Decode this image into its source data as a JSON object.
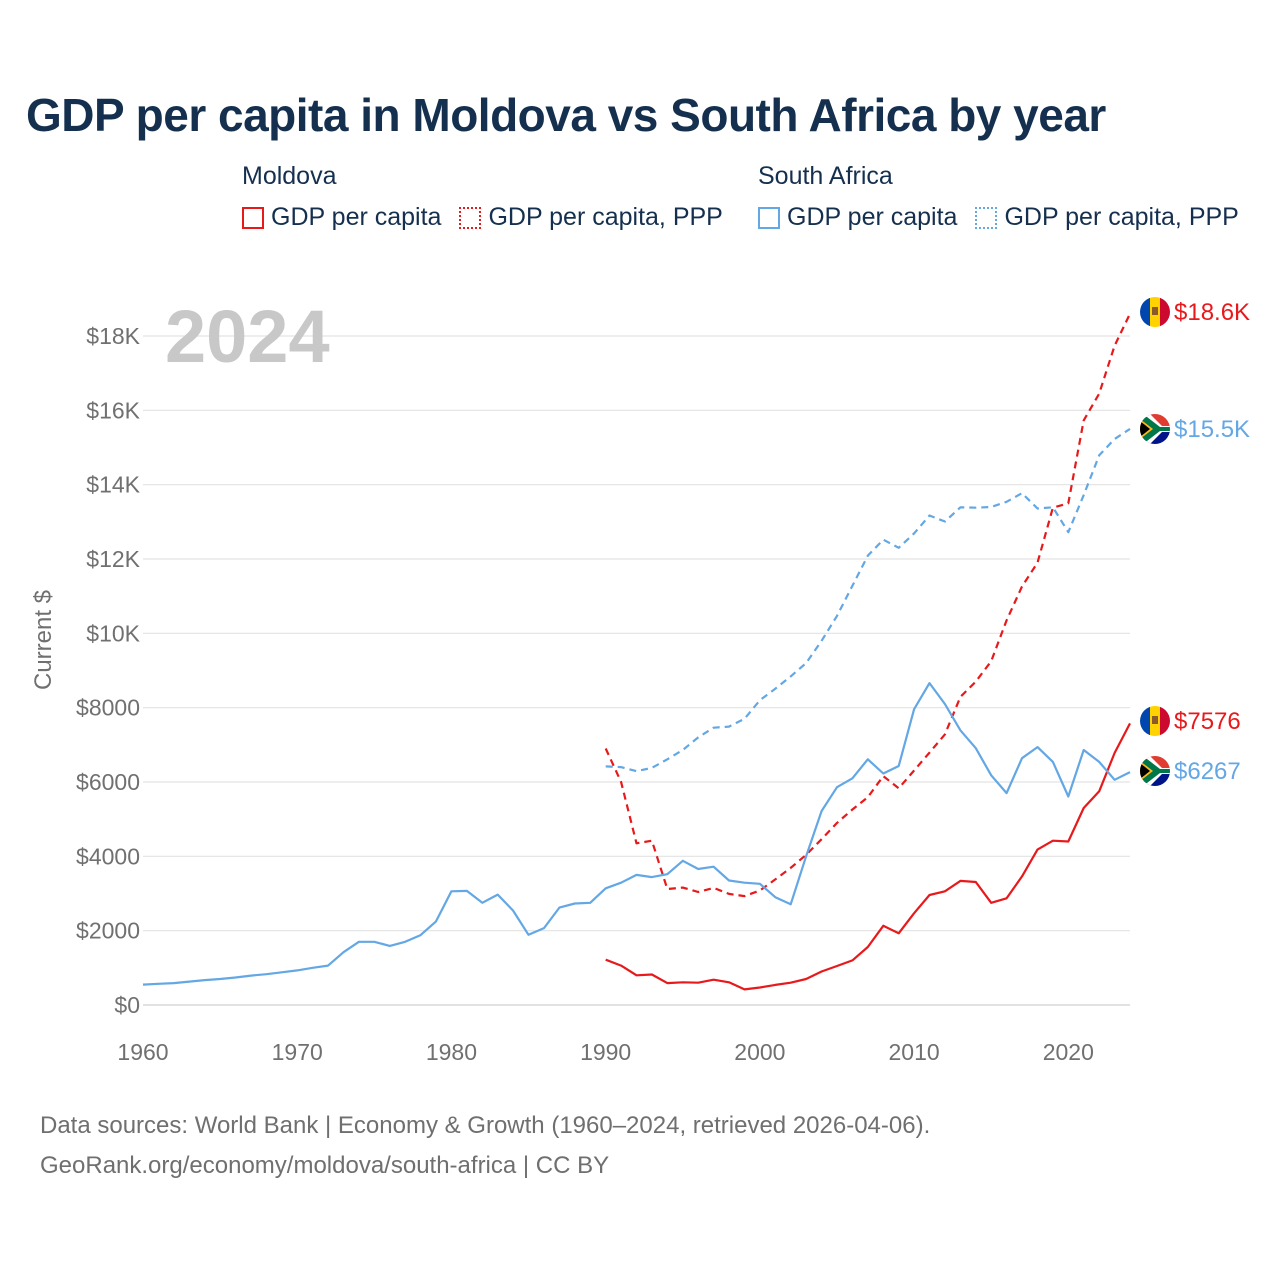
{
  "title": "GDP per capita in Moldova vs South Africa by year",
  "legend": {
    "groups": [
      {
        "country": "Moldova",
        "items": [
          "GDP per capita",
          "GDP per capita, PPP"
        ]
      },
      {
        "country": "South Africa",
        "items": [
          "GDP per capita",
          "GDP per capita, PPP"
        ]
      }
    ]
  },
  "year_watermark": "2024",
  "footer": {
    "line1": "Data sources: World Bank | Economy & Growth (1960–2024, retrieved 2026-04-06).",
    "line2": "GeoRank.org/economy/moldova/south-africa | CC BY"
  },
  "colors": {
    "moldova": "#e8191b",
    "south_africa": "#63a7e4",
    "grid": "#e3e3e3",
    "axis": "#707070"
  },
  "chart_data": {
    "type": "line",
    "xlabel": "",
    "ylabel": "Current $",
    "xlim": [
      1960,
      2024
    ],
    "ylim": [
      0,
      18000
    ],
    "x_ticks": [
      1960,
      1970,
      1980,
      1990,
      2000,
      2010,
      2020
    ],
    "y_ticks": [
      0,
      2000,
      4000,
      6000,
      8000,
      10000,
      12000,
      14000,
      16000,
      18000
    ],
    "y_tick_labels": [
      "$0",
      "$2000",
      "$4000",
      "$6000",
      "$8000",
      "$10K",
      "$12K",
      "$14K",
      "$16K",
      "$18K"
    ],
    "series": [
      {
        "name": "Moldova GDP per capita",
        "country": "Moldova",
        "style": "solid",
        "end_label": "$7576",
        "x": [
          1990,
          1991,
          1992,
          1993,
          1994,
          1995,
          1996,
          1997,
          1998,
          1999,
          2000,
          2001,
          2002,
          2003,
          2004,
          2005,
          2006,
          2007,
          2008,
          2009,
          2010,
          2011,
          2012,
          2013,
          2014,
          2015,
          2016,
          2017,
          2018,
          2019,
          2020,
          2021,
          2022,
          2023,
          2024
        ],
        "y": [
          1220,
          1060,
          800,
          820,
          590,
          610,
          600,
          680,
          610,
          420,
          470,
          540,
          600,
          700,
          900,
          1050,
          1200,
          1560,
          2130,
          1930,
          2470,
          2960,
          3060,
          3340,
          3310,
          2750,
          2870,
          3460,
          4180,
          4420,
          4400,
          5300,
          5750,
          6780,
          7576
        ]
      },
      {
        "name": "Moldova GDP per capita, PPP",
        "country": "Moldova",
        "style": "dashed",
        "end_label": "$18.6K",
        "x": [
          1990,
          1991,
          1992,
          1993,
          1994,
          1995,
          1996,
          1997,
          1998,
          1999,
          2000,
          2001,
          2002,
          2003,
          2004,
          2005,
          2006,
          2007,
          2008,
          2009,
          2010,
          2011,
          2012,
          2013,
          2014,
          2015,
          2016,
          2017,
          2018,
          2019,
          2020,
          2021,
          2022,
          2023,
          2024
        ],
        "y": [
          6900,
          6000,
          4350,
          4420,
          3120,
          3160,
          3040,
          3150,
          2990,
          2930,
          3080,
          3380,
          3690,
          4040,
          4460,
          4900,
          5260,
          5590,
          6160,
          5830,
          6310,
          6790,
          7280,
          8290,
          8700,
          9250,
          10350,
          11260,
          11900,
          13380,
          13500,
          15730,
          16450,
          17740,
          18600
        ]
      },
      {
        "name": "South Africa GDP per capita",
        "country": "South Africa",
        "style": "solid",
        "end_label": "$6267",
        "x": [
          1960,
          1961,
          1962,
          1963,
          1964,
          1965,
          1966,
          1967,
          1968,
          1969,
          1970,
          1971,
          1972,
          1973,
          1974,
          1975,
          1976,
          1977,
          1978,
          1979,
          1980,
          1981,
          1982,
          1983,
          1984,
          1985,
          1986,
          1987,
          1988,
          1989,
          1990,
          1991,
          1992,
          1993,
          1994,
          1995,
          1996,
          1997,
          1998,
          1999,
          2000,
          2001,
          2002,
          2003,
          2004,
          2005,
          2006,
          2007,
          2008,
          2009,
          2010,
          2011,
          2012,
          2013,
          2014,
          2015,
          2016,
          2017,
          2018,
          2019,
          2020,
          2021,
          2022,
          2023,
          2024
        ],
        "y": [
          550,
          570,
          590,
          630,
          670,
          700,
          740,
          790,
          830,
          880,
          930,
          1000,
          1060,
          1420,
          1700,
          1700,
          1590,
          1700,
          1880,
          2250,
          3060,
          3070,
          2750,
          2970,
          2540,
          1890,
          2070,
          2620,
          2730,
          2750,
          3140,
          3290,
          3500,
          3440,
          3520,
          3880,
          3660,
          3720,
          3350,
          3290,
          3260,
          2900,
          2710,
          4000,
          5220,
          5860,
          6100,
          6610,
          6230,
          6430,
          7960,
          8660,
          8100,
          7390,
          6910,
          6180,
          5700,
          6640,
          6940,
          6540,
          5610,
          6860,
          6540,
          6060,
          6267
        ]
      },
      {
        "name": "South Africa GDP per capita, PPP",
        "country": "South Africa",
        "style": "dashed",
        "end_label": "$15.5K",
        "x": [
          1990,
          1991,
          1992,
          1993,
          1994,
          1995,
          1996,
          1997,
          1998,
          1999,
          2000,
          2001,
          2002,
          2003,
          2004,
          2005,
          2006,
          2007,
          2008,
          2009,
          2010,
          2011,
          2012,
          2013,
          2014,
          2015,
          2016,
          2017,
          2018,
          2019,
          2020,
          2021,
          2022,
          2023,
          2024
        ],
        "y": [
          6420,
          6400,
          6290,
          6380,
          6610,
          6860,
          7200,
          7460,
          7490,
          7700,
          8200,
          8510,
          8840,
          9200,
          9800,
          10470,
          11280,
          12090,
          12520,
          12300,
          12690,
          13170,
          13010,
          13390,
          13380,
          13400,
          13540,
          13770,
          13360,
          13390,
          12720,
          13720,
          14790,
          15230,
          15500
        ]
      }
    ]
  }
}
